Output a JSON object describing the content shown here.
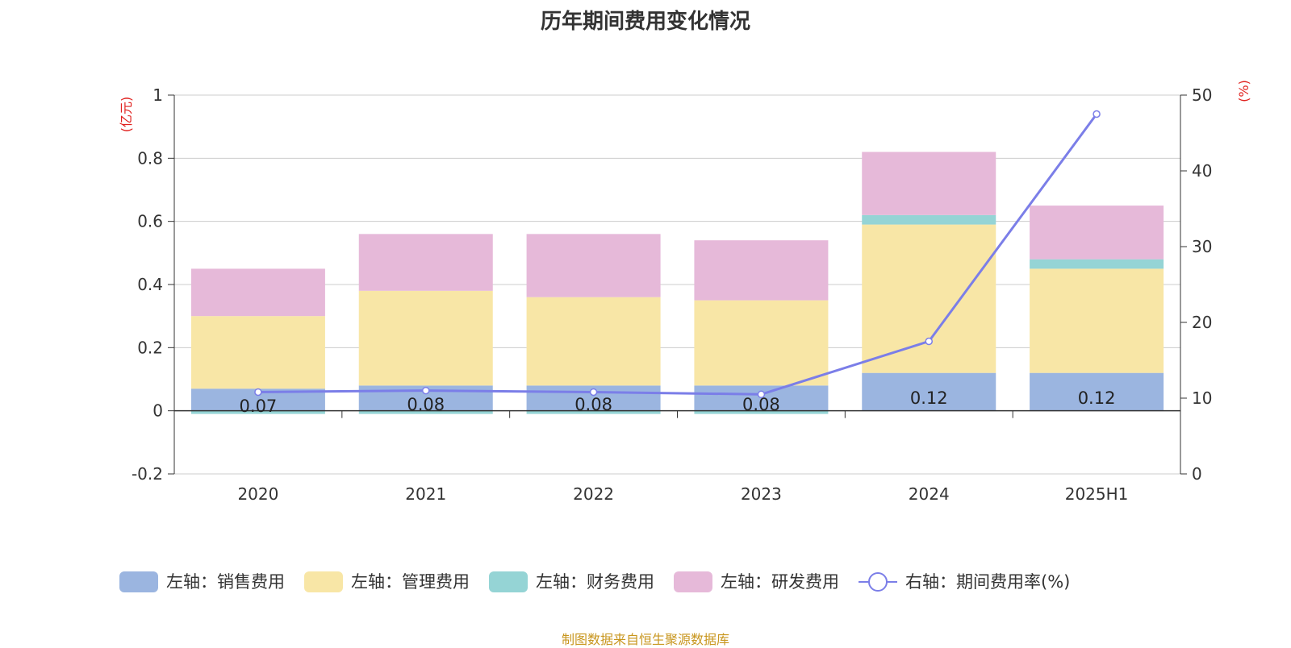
{
  "chart_data": {
    "type": "bar",
    "title": "历年期间费用变化情况",
    "categories": [
      "2020",
      "2021",
      "2022",
      "2023",
      "2024",
      "2025H1"
    ],
    "series": [
      {
        "name": "左轴：销售费用",
        "axis": "left",
        "color": "#9bb5e0",
        "values": [
          0.07,
          0.08,
          0.08,
          0.08,
          0.12,
          0.12
        ],
        "labels": [
          "0.07",
          "0.08",
          "0.08",
          "0.08",
          "0.12",
          "0.12"
        ]
      },
      {
        "name": "左轴：管理费用",
        "axis": "left",
        "color": "#f8e6a6",
        "values": [
          0.23,
          0.3,
          0.28,
          0.27,
          0.47,
          0.33
        ]
      },
      {
        "name": "左轴：财务费用",
        "axis": "left",
        "color": "#95d4d5",
        "values": [
          -0.01,
          -0.01,
          -0.01,
          -0.01,
          0.03,
          0.03
        ]
      },
      {
        "name": "左轴：研发费用",
        "axis": "left",
        "color": "#e6b9d9",
        "values": [
          0.15,
          0.18,
          0.2,
          0.19,
          0.2,
          0.17
        ]
      },
      {
        "name": "右轴：期间费用率(%)",
        "axis": "right",
        "type": "line",
        "color": "#7b7ee8",
        "values": [
          10.8,
          11.0,
          10.8,
          10.5,
          17.5,
          47.5
        ]
      }
    ],
    "y_left": {
      "unit": "(亿元)",
      "min": -0.2,
      "max": 1,
      "ticks": [
        "-0.2",
        "0",
        "0.2",
        "0.4",
        "0.6",
        "0.8",
        "1"
      ]
    },
    "y_right": {
      "unit": "(%)",
      "min": 0,
      "max": 50,
      "ticks": [
        "0",
        "10",
        "20",
        "30",
        "40",
        "50"
      ]
    },
    "grid": true,
    "legend_position": "bottom"
  },
  "source": "制图数据来自恒生聚源数据库"
}
